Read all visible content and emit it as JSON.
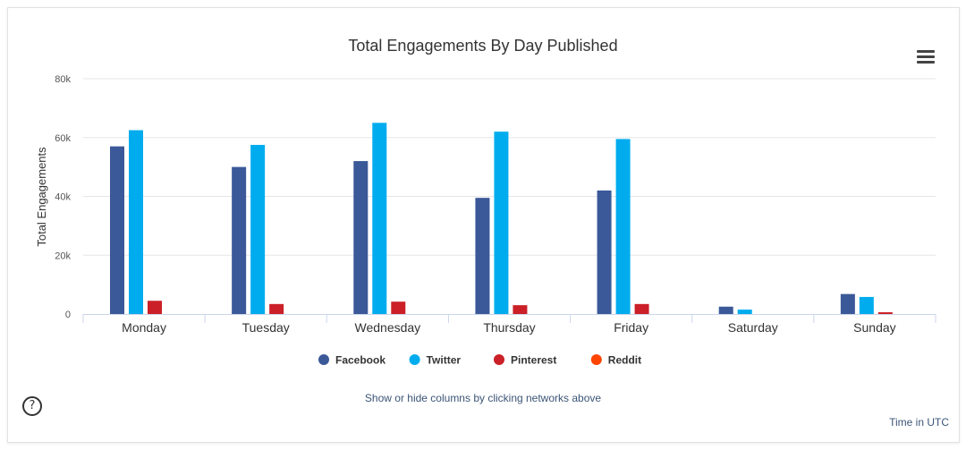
{
  "chart_data": {
    "type": "bar",
    "title": "Total Engagements By Day Published",
    "xlabel": "",
    "ylabel": "Total Engagements",
    "ylim": [
      0,
      80000
    ],
    "yticks": [
      {
        "value": 0,
        "label": "0"
      },
      {
        "value": 20000,
        "label": "20k"
      },
      {
        "value": 40000,
        "label": "40k"
      },
      {
        "value": 60000,
        "label": "60k"
      },
      {
        "value": 80000,
        "label": "80k"
      }
    ],
    "categories": [
      "Monday",
      "Tuesday",
      "Wednesday",
      "Thursday",
      "Friday",
      "Saturday",
      "Sunday"
    ],
    "series": [
      {
        "name": "Facebook",
        "color": "#3b5998",
        "values": [
          57000,
          50000,
          52000,
          39500,
          42000,
          2500,
          6800
        ]
      },
      {
        "name": "Twitter",
        "color": "#00acee",
        "values": [
          62500,
          57500,
          65000,
          62000,
          59500,
          1500,
          5800
        ]
      },
      {
        "name": "Pinterest",
        "color": "#cb2027",
        "values": [
          4500,
          3400,
          4200,
          3000,
          3400,
          0,
          600
        ]
      },
      {
        "name": "Reddit",
        "color": "#ff4500",
        "values": [
          0,
          0,
          0,
          0,
          0,
          0,
          0
        ]
      }
    ],
    "grid": true,
    "legend_position": "bottom-center"
  },
  "ui": {
    "hint": "Show or hide columns by clicking networks above",
    "timezone": "Time in UTC",
    "help_symbol": "?"
  }
}
